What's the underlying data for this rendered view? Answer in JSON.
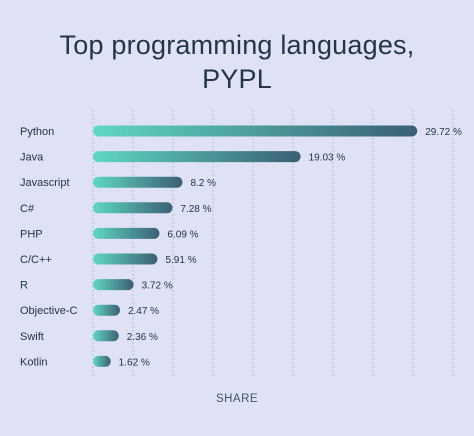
{
  "chart_data": {
    "type": "bar",
    "orientation": "horizontal",
    "title_lines": [
      "Top programming languages,",
      "PYPL"
    ],
    "categories": [
      "Python",
      "Java",
      "Javascript",
      "C#",
      "PHP",
      "C/C++",
      "R",
      "Objective-C",
      "Swift",
      "Kotlin"
    ],
    "values": [
      29.72,
      19.03,
      8.2,
      7.28,
      6.09,
      5.91,
      3.72,
      2.47,
      2.36,
      1.62
    ],
    "value_labels": [
      "29.72 %",
      "19.03 %",
      "8.2 %",
      "7.28 %",
      "6.09 %",
      "5.91 %",
      "3.72 %",
      "2.47 %",
      "2.36 %",
      "1.62 %"
    ],
    "unit": "%",
    "xlim": [
      0,
      33
    ],
    "grid": "vertical dotted",
    "colors": {
      "bar_start": "#5fd8c2",
      "bar_end": "#3b5f74",
      "background": "#dfe2f4"
    }
  },
  "footer": {
    "share_label": "SHARE"
  }
}
